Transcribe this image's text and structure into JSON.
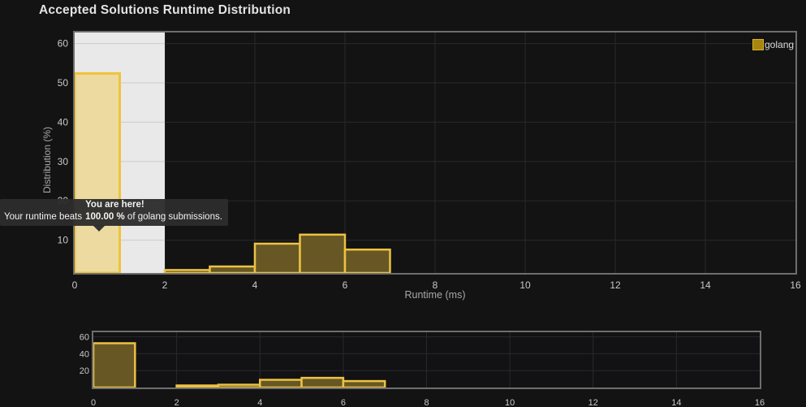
{
  "page": {
    "title": "Accepted Solutions Runtime Distribution"
  },
  "legend": {
    "label": "golang"
  },
  "tooltip": {
    "line1": "You are here!",
    "beats_prefix": "Your runtime beats",
    "beats_value": "100.00 %",
    "beats_suffix": "of golang submissions."
  },
  "colors": {
    "background": "#131314",
    "grid": "#29292b",
    "grid_on_selection": "#cdcdcd",
    "chart_border": "#6e6e6e",
    "bar_fill": "#675724",
    "bar_stroke": "#ecc243",
    "highlight_bar_fill": "#ecdaa0",
    "highlight_bar_stroke": "#f0c33c",
    "selection_fill": "#e9e9e9",
    "tick_text": "#c9c9c9",
    "axis_title_text": "#a8a8a8",
    "title_text": "#e3e3e3",
    "tooltip_bg": "#2d2d2d",
    "tooltip_text": "#f2f2f2",
    "legend_swatch_fill": "#a8860e",
    "legend_swatch_stroke": "#d9b02c"
  },
  "chart_data": [
    {
      "id": "main-distribution",
      "type": "bar",
      "title": "Accepted Solutions Runtime Distribution",
      "xlabel": "Runtime (ms)",
      "ylabel": "Distribution (%)",
      "xlim": [
        0,
        16
      ],
      "ylim": [
        0,
        62
      ],
      "x_ticks": [
        0,
        2,
        4,
        6,
        8,
        10,
        12,
        14,
        16
      ],
      "y_ticks": [
        10,
        20,
        30,
        40,
        50,
        60
      ],
      "grid": true,
      "legend_position": "top-right",
      "selection_range": [
        0,
        2
      ],
      "series": [
        {
          "name": "golang",
          "bins": [
            {
              "range": [
                0,
                1
              ],
              "value": 52.4,
              "highlighted": true
            },
            {
              "range": [
                2,
                3
              ],
              "value": 2.4
            },
            {
              "range": [
                3,
                4
              ],
              "value": 3.3
            },
            {
              "range": [
                4,
                5
              ],
              "value": 9.1
            },
            {
              "range": [
                5,
                6
              ],
              "value": 11.4
            },
            {
              "range": [
                6,
                7
              ],
              "value": 7.6
            }
          ]
        }
      ],
      "annotation": "You are here! Your runtime beats 100.00 % of golang submissions."
    },
    {
      "id": "navigator-overview",
      "type": "bar",
      "title": "",
      "xlabel": "",
      "ylabel": "",
      "xlim": [
        0,
        16
      ],
      "ylim": [
        0,
        66
      ],
      "x_ticks": [
        0,
        2,
        4,
        6,
        8,
        10,
        12,
        14,
        16
      ],
      "y_ticks": [
        20,
        40,
        60
      ],
      "grid": true,
      "series": [
        {
          "name": "golang",
          "bins": [
            {
              "range": [
                0,
                1
              ],
              "value": 52.4
            },
            {
              "range": [
                2,
                3
              ],
              "value": 2.4
            },
            {
              "range": [
                3,
                4
              ],
              "value": 3.3
            },
            {
              "range": [
                4,
                5
              ],
              "value": 9.1
            },
            {
              "range": [
                5,
                6
              ],
              "value": 11.4
            },
            {
              "range": [
                6,
                7
              ],
              "value": 7.6
            }
          ]
        }
      ]
    }
  ]
}
